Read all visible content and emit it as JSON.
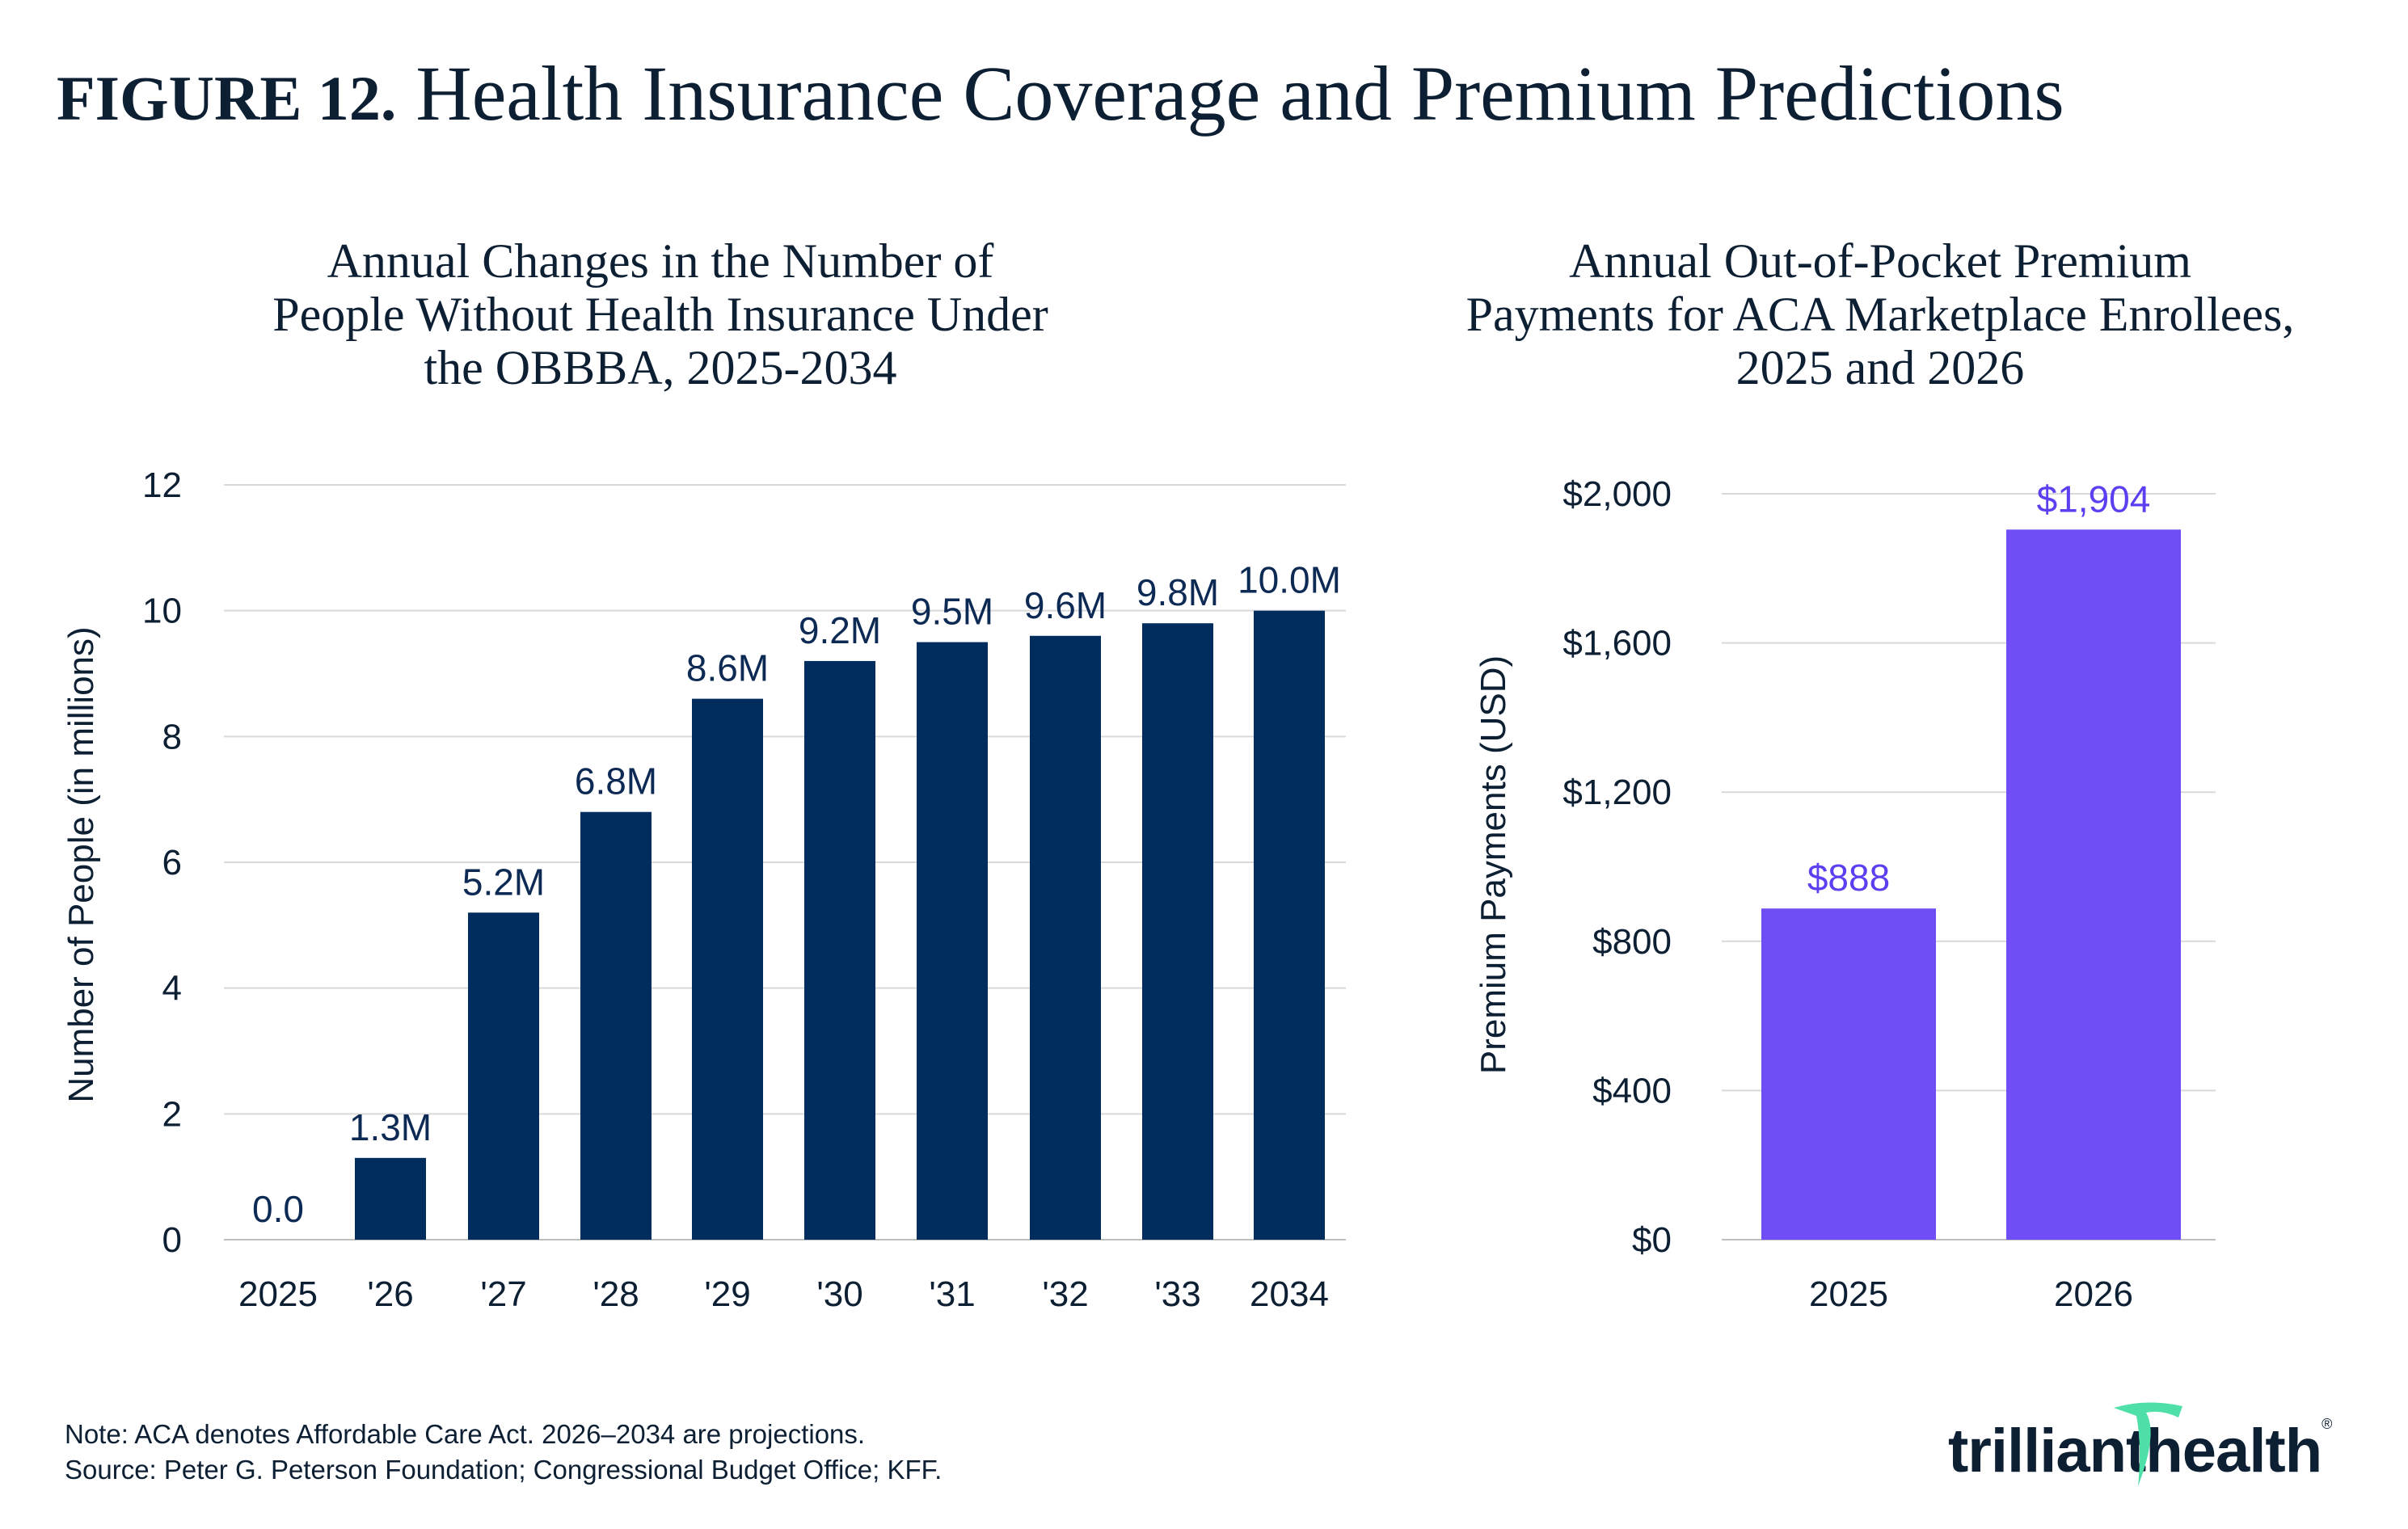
{
  "figure_label": "FIGURE 12.",
  "figure_title": "Health Insurance Coverage and Premium Predictions",
  "notes": {
    "note": "Note: ACA denotes Affordable Care Act. 2026–2034 are projections.",
    "source": "Source: Peter G. Peterson Foundation; Congressional Budget Office; KFF."
  },
  "logo": {
    "left": "trilliant",
    "right": "health",
    "mark": "®"
  },
  "colors": {
    "navy": "#002d5e",
    "purple": "#6f4ef6",
    "purple_label": "#5b3ff0",
    "grid": "#d9d9d9",
    "logo_green": "#4ee0a8"
  },
  "chart_data": [
    {
      "type": "bar",
      "title_lines": [
        "Annual Changes in the Number of",
        "People Without Health Insurance Under",
        "the OBBBA, 2025-2034"
      ],
      "categories": [
        "2025",
        "'26",
        "'27",
        "'28",
        "'29",
        "'30",
        "'31",
        "'32",
        "'33",
        "2034"
      ],
      "values": [
        0.0,
        1.3,
        5.2,
        6.8,
        8.6,
        9.2,
        9.5,
        9.6,
        9.8,
        10.0
      ],
      "data_labels": [
        "0.0",
        "1.3M",
        "5.2M",
        "6.8M",
        "8.6M",
        "9.2M",
        "9.5M",
        "9.6M",
        "9.8M",
        "10.0M"
      ],
      "xlabel": "",
      "ylabel": "Number of People (in millions)",
      "ylim": [
        0,
        12
      ],
      "yticks": [
        0,
        2,
        4,
        6,
        8,
        10,
        12
      ],
      "ytick_labels": [
        "0",
        "2",
        "4",
        "6",
        "8",
        "10",
        "12"
      ],
      "grid": true
    },
    {
      "type": "bar",
      "title_lines": [
        "Annual Out-of-Pocket Premium",
        "Payments for ACA Marketplace Enrollees,",
        "2025 and 2026"
      ],
      "categories": [
        "2025",
        "2026"
      ],
      "values": [
        888,
        1904
      ],
      "data_labels": [
        "$888",
        "$1,904"
      ],
      "xlabel": "",
      "ylabel": "Premium Payments (USD)",
      "ylim": [
        0,
        2000
      ],
      "yticks": [
        0,
        400,
        800,
        1200,
        1600,
        2000
      ],
      "ytick_labels": [
        "$0",
        "$400",
        "$800",
        "$1,200",
        "$1,600",
        "$2,000"
      ],
      "grid": true
    }
  ]
}
